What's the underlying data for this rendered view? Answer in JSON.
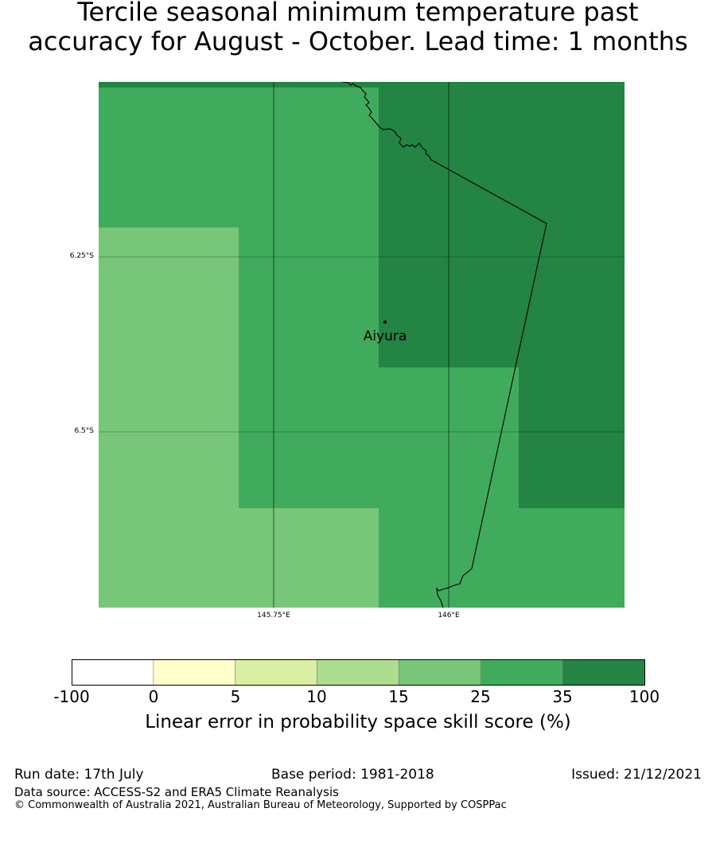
{
  "title": {
    "line1": "Tercile seasonal minimum temperature past",
    "line2": "accuracy for August - October. Lead time: 1 months"
  },
  "map": {
    "lat_labels": [
      "6.25°S",
      "6.5°S"
    ],
    "lon_labels": [
      "145.75°E",
      "146°E"
    ],
    "place": {
      "name": "Aiyura"
    },
    "colors": {
      "class_15_25": "#78c679",
      "class_25_35": "#41ab5d",
      "class_35_100": "#238443"
    }
  },
  "colorbar": {
    "ticks": [
      "-100",
      "0",
      "5",
      "10",
      "15",
      "25",
      "35",
      "100"
    ],
    "colors": [
      "#ffffff",
      "#ffffcc",
      "#d9f0a3",
      "#addd8e",
      "#78c679",
      "#41ab5d",
      "#238443"
    ],
    "label": "Linear error in probability space skill score (%)"
  },
  "footer": {
    "run_date": "Run date: 17th July",
    "base_period": "Base period: 1981-2018",
    "issued": "Issued: 21/12/2021",
    "source": "Data source: ACCESS-S2 and ERA5 Climate Reanalysis",
    "copyright": "© Commonwealth of Australia 2021, Australian Bureau of Meteorology, Supported by COSPPac"
  }
}
